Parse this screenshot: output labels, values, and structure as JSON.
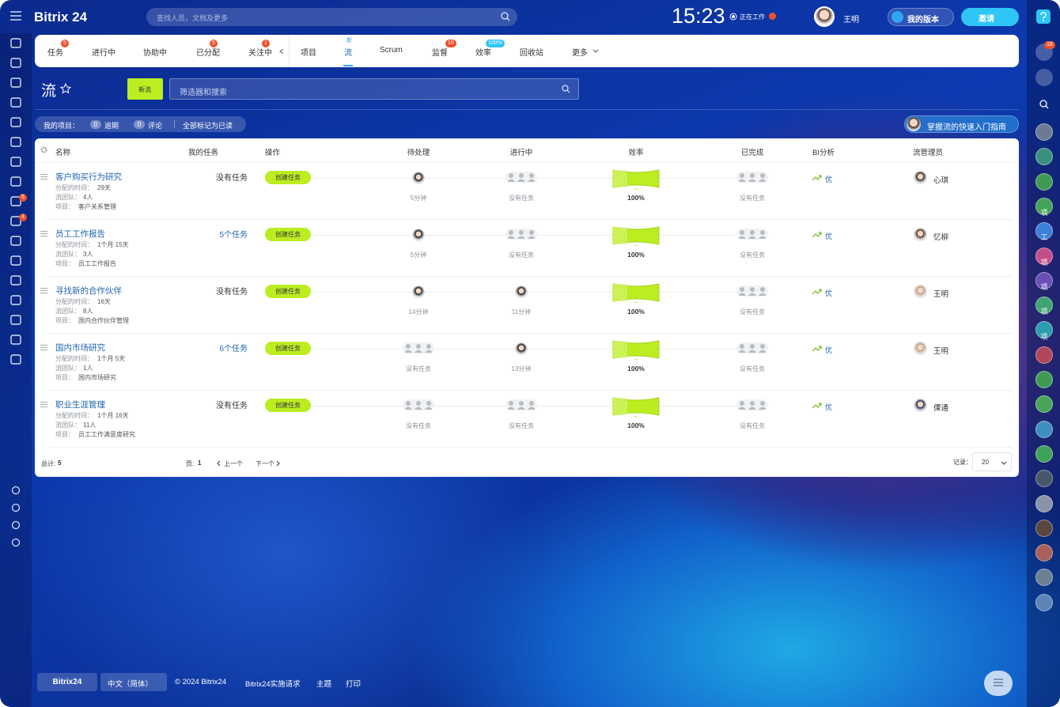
{
  "header": {
    "logo": "Bitrix 24",
    "search": "查找人员，文档及更多",
    "time": "15:23",
    "status": "正在工作",
    "user": "王明",
    "plan": "我的版本",
    "invite": "邀请"
  },
  "tabs": [
    {
      "label": "任务",
      "badge": "5"
    },
    {
      "label": "进行中"
    },
    {
      "label": "协助中"
    },
    {
      "label": "已分配",
      "badge": "5"
    },
    {
      "label": "关注中",
      "badge": "1"
    },
    {
      "label": "项目"
    },
    {
      "label": "流",
      "badge": "新"
    },
    {
      "label": "Scrum"
    },
    {
      "label": "监督",
      "badge": "15"
    },
    {
      "label": "效率",
      "badge": "100%"
    },
    {
      "label": "回收站"
    },
    {
      "label": "更多"
    }
  ],
  "toolbar": {
    "title": "流",
    "new_button": "新流",
    "filter": "筛选器和搜索"
  },
  "counters": {
    "label": "我的项目：",
    "overdue_count": "0",
    "overdue": "逾期",
    "comments_count": "0",
    "comments": "评论",
    "mark_read": "全部标记为已读",
    "guide": "掌握流的快速入门指南"
  },
  "sidebar": {
    "tasks_badge": "5",
    "filter_badge": "4",
    "notify_badge": "18",
    "groups": [
      "项",
      "工",
      "项",
      "项",
      "项",
      "项"
    ]
  },
  "table": {
    "columns": [
      "名称",
      "我的任务",
      "操作",
      "待处理",
      "进行中",
      "效率",
      "已完成",
      "BI分析",
      "流管理员"
    ],
    "labels": {
      "assigned": "分配的时间：",
      "team": "流团队：",
      "project": "项目："
    },
    "rows": [
      {
        "name": "客户购买行为研究",
        "assigned": "29天",
        "team": "4人",
        "project": "客户关系管理",
        "my_tasks": "没有任务",
        "action": "创建任务",
        "pending": "5分钟",
        "in_progress": "没有任务",
        "efficiency": "100%",
        "completed": "没有任务",
        "bi": "优",
        "admin": "心琪"
      },
      {
        "name": "员工工作报告",
        "assigned": "1个月 15天",
        "team": "3人",
        "project": "员工工作报告",
        "my_tasks": "5个任务",
        "action": "创建任务",
        "pending": "5分钟",
        "in_progress": "没有任务",
        "efficiency": "100%",
        "completed": "没有任务",
        "bi": "优",
        "admin": "忆柳"
      },
      {
        "name": "寻找新的合作伙伴",
        "assigned": "16天",
        "team": "8人",
        "project": "国内合作伙伴管理",
        "my_tasks": "没有任务",
        "action": "创建任务",
        "pending": "14分钟",
        "in_progress": "11分钟",
        "efficiency": "100%",
        "completed": "没有任务",
        "bi": "优",
        "admin": "王明"
      },
      {
        "name": "国内市场研究",
        "assigned": "1个月 5天",
        "team": "1人",
        "project": "国内市场研究",
        "my_tasks": "6个任务",
        "action": "创建任务",
        "pending": "没有任务",
        "in_progress": "13分钟",
        "efficiency": "100%",
        "completed": "没有任务",
        "bi": "优",
        "admin": "王明"
      },
      {
        "name": "职业生涯管理",
        "assigned": "1个月 16天",
        "team": "11人",
        "project": "员工工作满意度研究",
        "my_tasks": "没有任务",
        "action": "创建任务",
        "pending": "没有任务",
        "in_progress": "没有任务",
        "efficiency": "100%",
        "completed": "没有任务",
        "bi": "优",
        "admin": "倮通"
      }
    ],
    "footer": {
      "total_label": "总计:",
      "total": "5",
      "page_label": "页:",
      "page": "1",
      "prev": "上一个",
      "next": "下一个",
      "records_label": "记录：",
      "records": "20"
    }
  },
  "footer": {
    "brand": "Bitrix24",
    "language": "中文（简体）",
    "copyright": "© 2024 Bitrix24",
    "request": "Bitrix24实施请求",
    "theme": "主题",
    "print": "打印"
  }
}
